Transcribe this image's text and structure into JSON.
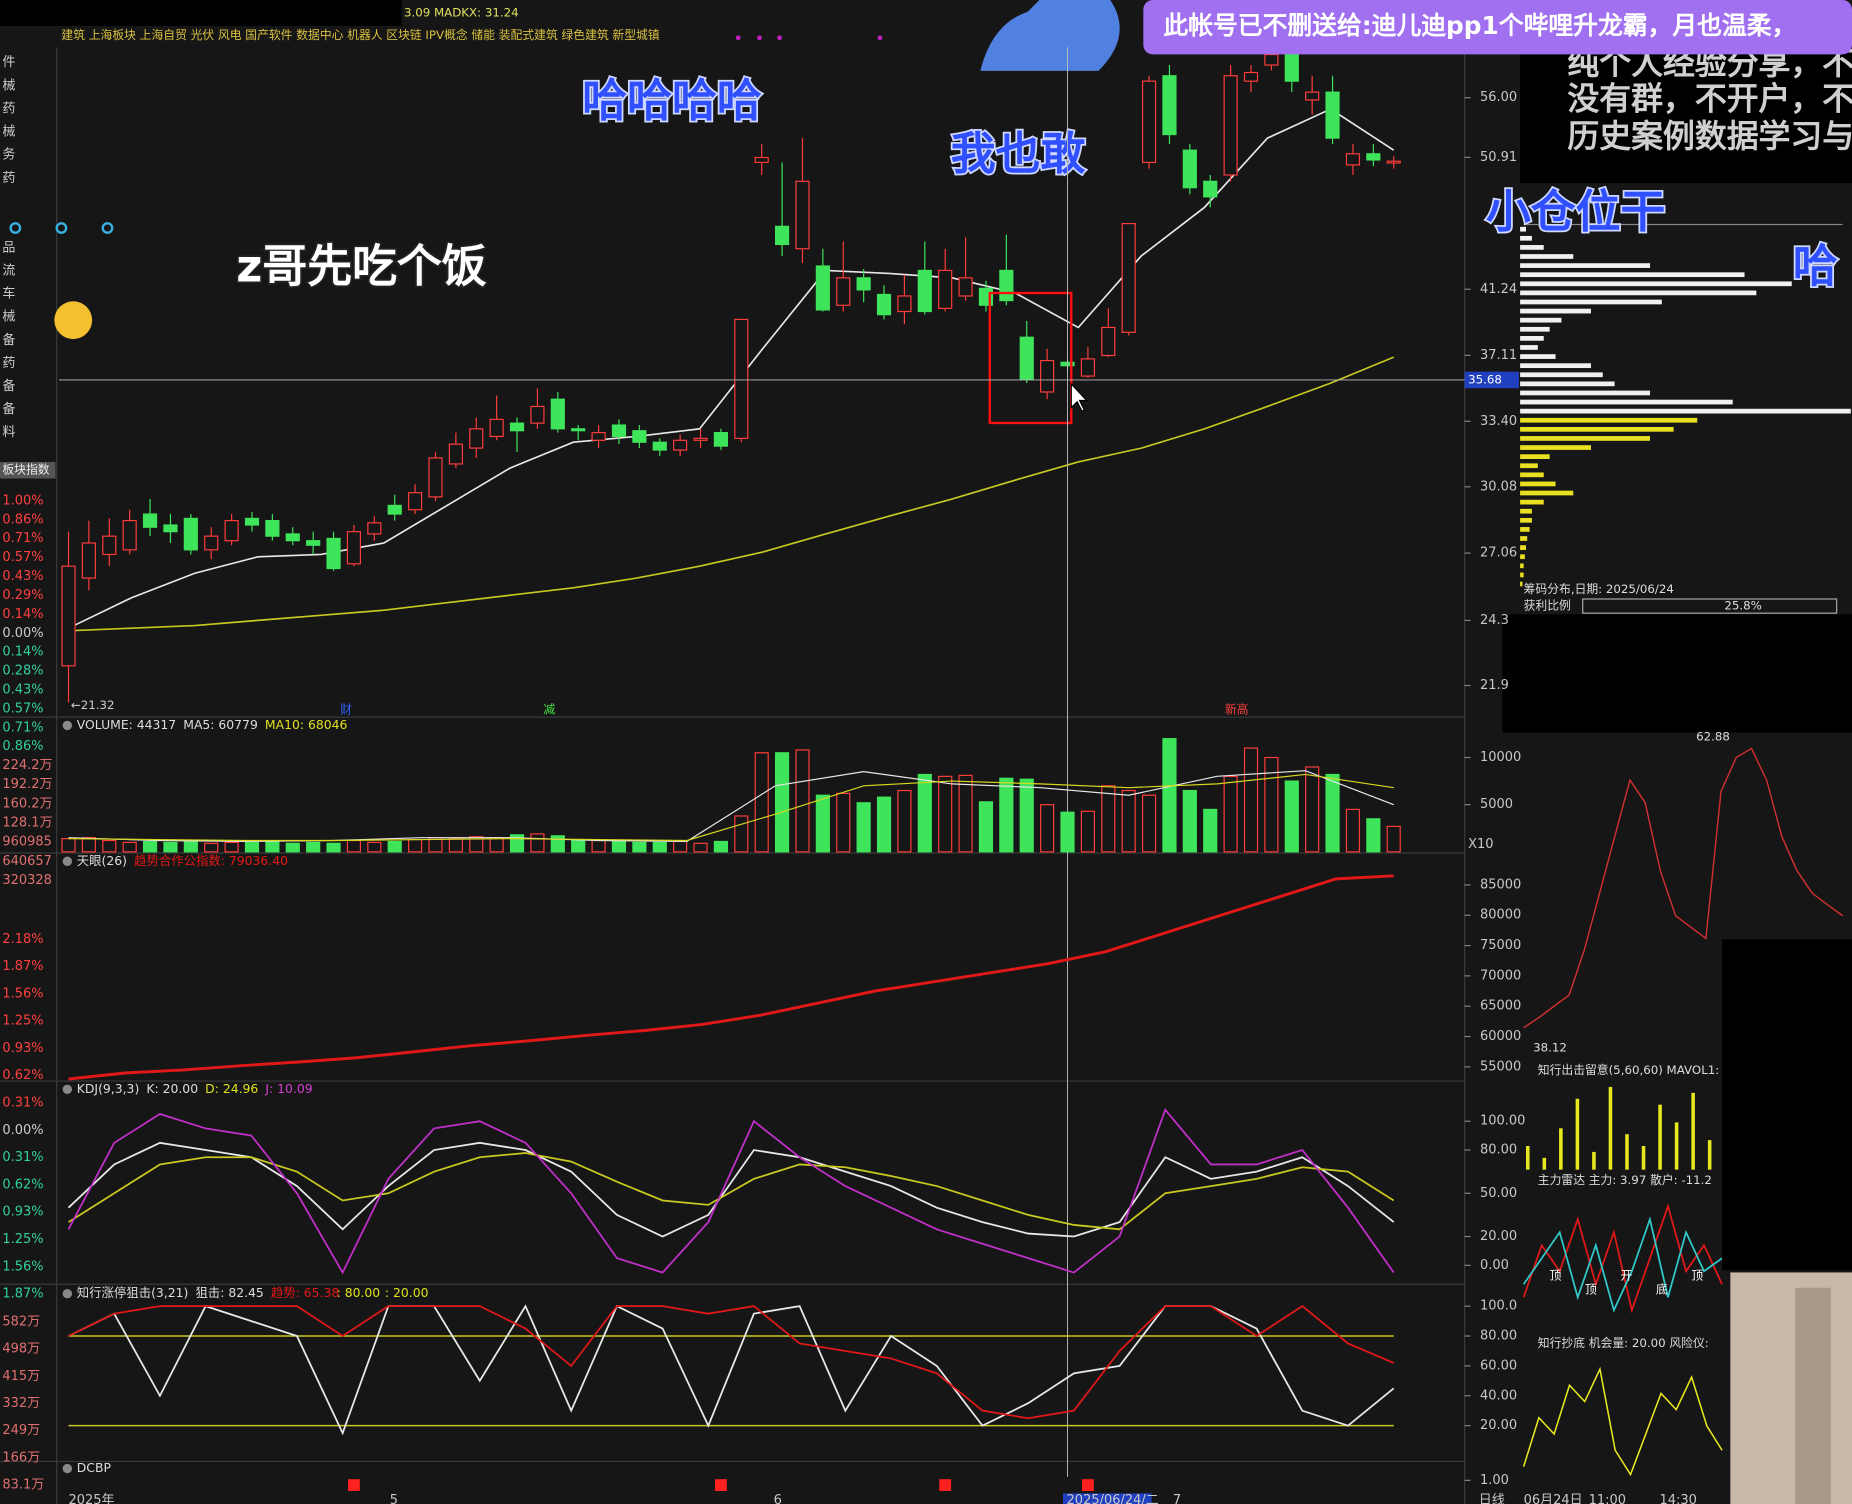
{
  "header": {
    "indicator": "3.09 MADKX: 31.24",
    "sectors": "建筑 上海板块 上海自贸 光伏 风电 国产软件 数据中心 机器人 区块链 IPV概念 储能 装配式建筑 绿色建筑 新型城镇"
  },
  "sidebar": {
    "top": [
      "件",
      "械",
      "药",
      "械",
      "务",
      "药"
    ],
    "mid": [
      "品",
      "流",
      "车",
      "械",
      "备",
      "药",
      "备",
      "备",
      "料"
    ],
    "index_label": "板块指数",
    "pct1": [
      "1.00%",
      "0.86%",
      "0.71%",
      "0.57%",
      "0.43%",
      "0.29%",
      "0.14%",
      "0.00%",
      "0.14%",
      "0.28%",
      "0.43%",
      "0.57%",
      "0.71%",
      "0.86%"
    ],
    "vol": [
      "224.2万",
      "192.2万",
      "160.2万",
      "128.1万",
      "960985",
      "640657",
      "320328"
    ],
    "pct2": [
      "2.18%",
      "1.87%",
      "1.56%",
      "1.25%",
      "0.93%",
      "0.62%",
      "0.31%",
      "0.00%",
      "0.31%",
      "0.62%",
      "0.93%",
      "1.25%",
      "1.56%",
      "1.87%"
    ],
    "amount": [
      "582万",
      "498万",
      "415万",
      "332万",
      "249万",
      "166万",
      "83.1万"
    ]
  },
  "overlays": {
    "haha": "哈哈哈哈",
    "dare": "我也敢",
    "eat": "z哥先吃个饭",
    "small": "小仓位干",
    "ha": "哈",
    "banner": "此帐号已不删送给:迪儿迪pp1个哔哩升龙霸，月也温柔，",
    "notes": [
      "纯个人经验分享，不",
      "没有群，不开户，不",
      "历史案例数据学习与"
    ]
  },
  "chart_data": [
    {
      "type": "candlestick",
      "log_scale": true,
      "ylim": [
        20.9,
        60.7
      ],
      "yticks": [
        {
          "value": 56,
          "label": "56.00"
        },
        50.91,
        41.24,
        37.11,
        {
          "value": 33.4,
          "label": "33.40"
        },
        30.08,
        27.06,
        24.3,
        21.9
      ],
      "current_price": 35.68,
      "low_label": "←21.32",
      "markers": [
        "财",
        "减",
        "新高"
      ],
      "up_color": "#ff3c3c",
      "down_color": "#3ee55a",
      "open": [
        22.6,
        26.0,
        27.0,
        27.2,
        28.8,
        28.3,
        28.6,
        27.2,
        27.6,
        28.6,
        28.5,
        27.9,
        27.6,
        27.7,
        26.6,
        27.9,
        29.2,
        29.0,
        29.6,
        31.2,
        32.0,
        32.6,
        33.3,
        33.3,
        34.6,
        33.0,
        32.4,
        33.2,
        32.9,
        32.3,
        31.9,
        32.4,
        32.8,
        32.5,
        50.5,
        45.6,
        44.0,
        42.8,
        40.2,
        42.0,
        40.9,
        39.8,
        42.5,
        40.0,
        40.8,
        41.3,
        42.5,
        38.2,
        35.0,
        36.7,
        35.9,
        37.1,
        38.5,
        50.5,
        58.0,
        51.5,
        49.0,
        49.5,
        57.5,
        59.0,
        60.0,
        55.8,
        56.5,
        50.3,
        51.2,
        50.5
      ],
      "high": [
        28.0,
        28.5,
        28.6,
        29.0,
        29.5,
        28.8,
        28.8,
        28.2,
        28.8,
        28.9,
        28.8,
        28.2,
        28.0,
        28.0,
        28.3,
        28.7,
        29.7,
        30.2,
        31.8,
        32.8,
        33.6,
        34.8,
        33.6,
        35.2,
        35.0,
        33.2,
        33.2,
        33.5,
        33.2,
        32.5,
        32.7,
        33.0,
        33.0,
        39.3,
        52.0,
        50.5,
        52.5,
        44.0,
        44.5,
        42.6,
        41.5,
        42.2,
        44.5,
        44.0,
        44.8,
        41.8,
        45.0,
        39.2,
        37.5,
        36.9,
        37.6,
        40.0,
        45.8,
        58.0,
        59.0,
        52.0,
        49.5,
        59.0,
        59.0,
        61.0,
        60.5,
        58.0,
        58.0,
        52.0,
        52.0,
        51.0
      ],
      "low": [
        21.32,
        25.5,
        26.5,
        27.0,
        27.8,
        27.5,
        27.0,
        26.8,
        27.4,
        28.0,
        27.6,
        27.4,
        27.0,
        26.3,
        26.5,
        27.6,
        28.5,
        28.8,
        29.4,
        31.0,
        31.5,
        32.4,
        31.8,
        33.0,
        32.8,
        32.4,
        32.0,
        32.2,
        32.0,
        31.6,
        31.6,
        32.0,
        31.9,
        32.3,
        49.5,
        43.5,
        43.0,
        39.8,
        39.8,
        40.4,
        39.3,
        39.0,
        39.6,
        39.8,
        40.5,
        39.8,
        40.2,
        35.5,
        34.6,
        36.2,
        35.8,
        37.0,
        38.3,
        50.0,
        52.0,
        48.0,
        47.0,
        49.0,
        56.5,
        58.5,
        56.5,
        54.5,
        52.0,
        49.5,
        50.2,
        50.0
      ],
      "close": [
        26.5,
        27.5,
        27.8,
        28.5,
        28.2,
        28.0,
        27.2,
        27.8,
        28.5,
        28.3,
        27.8,
        27.6,
        27.4,
        26.4,
        28.0,
        28.4,
        28.8,
        29.8,
        31.5,
        32.2,
        33.0,
        33.5,
        32.9,
        34.2,
        33.0,
        32.9,
        32.8,
        32.6,
        32.3,
        31.9,
        32.4,
        32.5,
        32.1,
        39.3,
        50.9,
        44.3,
        49.0,
        39.9,
        42.0,
        41.2,
        39.6,
        40.8,
        39.8,
        42.5,
        42.0,
        40.2,
        40.5,
        35.7,
        36.8,
        36.5,
        36.9,
        38.8,
        45.8,
        57.5,
        52.8,
        48.5,
        47.8,
        58.0,
        58.3,
        60.0,
        57.5,
        56.5,
        52.5,
        51.2,
        50.7,
        50.6
      ],
      "ma": [
        {
          "color": "#e8e8e8",
          "values": [
            24.0,
            25.2,
            26.2,
            26.9,
            27.0,
            27.5,
            29.2,
            31.0,
            32.3,
            32.6,
            33.0,
            37.5,
            42.5,
            42.3,
            42.0,
            41.0,
            38.8,
            43.5,
            47.0,
            52.5,
            55.0,
            51.5
          ]
        },
        {
          "color": "#c8c820",
          "values": [
            23.9,
            24.0,
            24.1,
            24.3,
            24.5,
            24.7,
            25.0,
            25.3,
            25.6,
            26.0,
            26.5,
            27.1,
            27.9,
            28.7,
            29.5,
            30.4,
            31.3,
            32.0,
            33.0,
            34.2,
            35.5,
            37.0
          ]
        }
      ]
    },
    {
      "type": "bar",
      "header": [
        "VOLUME: 44317",
        "MA5: 60779",
        "MA10: 68046"
      ],
      "unit": "X10",
      "ylim": [
        0,
        12400
      ],
      "yticks": [
        10000,
        5000
      ],
      "values": [
        1400,
        1500,
        1200,
        1000,
        1100,
        1000,
        1100,
        900,
        1000,
        1000,
        1100,
        900,
        1000,
        900,
        1200,
        1000,
        1100,
        1300,
        1500,
        1400,
        1600,
        1500,
        1800,
        1900,
        1700,
        1300,
        1200,
        1100,
        1000,
        1000,
        1100,
        900,
        1100,
        3800,
        10500,
        10500,
        10800,
        6000,
        6200,
        5200,
        5800,
        6500,
        8200,
        8000,
        8100,
        5300,
        7800,
        7700,
        5000,
        4200,
        4300,
        7000,
        6500,
        6000,
        12000,
        6500,
        4500,
        8000,
        11000,
        10000,
        7500,
        9000,
        8200,
        4500,
        3500,
        2700
      ],
      "series": [
        {
          "name": "MA5",
          "color": "#e8e8e8",
          "values": [
            1500,
            1200,
            1100,
            1200,
            1500,
            1500,
            1200,
            1100,
            7000,
            8500,
            7200,
            6800,
            6000,
            8000,
            8600,
            5000
          ]
        },
        {
          "name": "MA10",
          "color": "#d8d820",
          "values": [
            1400,
            1300,
            1200,
            1200,
            1300,
            1400,
            1300,
            1200,
            4000,
            7000,
            7500,
            7200,
            6800,
            7200,
            8200,
            6800
          ]
        }
      ]
    },
    {
      "type": "line",
      "header": [
        "天眼(26)",
        "趋势合作公指数: 79036.40"
      ],
      "ylim": [
        52660,
        87730
      ],
      "yticks": [
        85000,
        80000,
        75000,
        70000,
        65000,
        60000,
        55000
      ],
      "series": [
        {
          "color": "#e01818",
          "values": [
            53000,
            54000,
            54500,
            55200,
            55800,
            56500,
            57500,
            58500,
            59300,
            60200,
            61000,
            62000,
            63500,
            65500,
            67500,
            69000,
            70500,
            72000,
            74000,
            77000,
            80000,
            83000,
            86000,
            86500
          ]
        }
      ]
    },
    {
      "type": "line",
      "header": [
        "KDJ(9,3,3)",
        "K: 20.00",
        "D: 24.96",
        "J: 10.09"
      ],
      "ylim": [
        -11.5,
        115.6
      ],
      "yticks": [
        {
          "value": 100,
          "label": "100.00"
        },
        {
          "value": 80,
          "label": "80.00"
        },
        {
          "value": 50,
          "label": "50.00"
        },
        {
          "value": 20,
          "label": "20.00"
        },
        {
          "value": 0,
          "label": "0.00"
        }
      ],
      "series": [
        {
          "name": "K",
          "color": "#e8e8e8",
          "values": [
            40,
            70,
            85,
            80,
            75,
            55,
            25,
            55,
            80,
            85,
            80,
            65,
            35,
            20,
            35,
            80,
            75,
            65,
            55,
            40,
            30,
            22,
            20,
            30,
            75,
            60,
            65,
            75,
            55,
            30
          ]
        },
        {
          "name": "D",
          "color": "#c8c820",
          "values": [
            30,
            50,
            70,
            75,
            75,
            65,
            45,
            50,
            65,
            75,
            78,
            72,
            58,
            45,
            42,
            60,
            70,
            68,
            62,
            55,
            45,
            35,
            28,
            25,
            50,
            55,
            60,
            68,
            65,
            45
          ]
        },
        {
          "name": "J",
          "color": "#c030c8",
          "values": [
            25,
            85,
            105,
            95,
            90,
            50,
            -5,
            60,
            95,
            100,
            85,
            50,
            5,
            -5,
            30,
            100,
            75,
            55,
            40,
            25,
            15,
            5,
            -5,
            20,
            108,
            70,
            70,
            80,
            40,
            -5
          ]
        }
      ]
    },
    {
      "type": "line",
      "header": [
        "知行涨停狙击(3,21)",
        "狙击: 82.45",
        "趋势: 65.38"
      ],
      "ylim": [
        -2.4,
        110.7
      ],
      "levels": [
        {
          "value": 80,
          "label": ": 80.00"
        },
        {
          "value": 20,
          "label": ": 20.00"
        }
      ],
      "yticks": [
        {
          "value": 100,
          "label": "100.0"
        },
        {
          "value": 80,
          "label": "80.00"
        },
        {
          "value": 60,
          "label": "60.00"
        },
        {
          "value": 40,
          "label": "40.00"
        },
        {
          "value": 20,
          "label": "20.00"
        }
      ],
      "series": [
        {
          "color": "#e8e8e8",
          "values": [
            80,
            95,
            40,
            100,
            90,
            80,
            15,
            100,
            100,
            50,
            100,
            30,
            100,
            85,
            20,
            95,
            100,
            30,
            80,
            60,
            20,
            35,
            55,
            60,
            100,
            100,
            85,
            30,
            20,
            45
          ]
        },
        {
          "color": "#e01818",
          "values": [
            80,
            95,
            100,
            100,
            100,
            100,
            80,
            100,
            100,
            100,
            85,
            60,
            100,
            100,
            95,
            100,
            75,
            70,
            65,
            55,
            30,
            25,
            30,
            70,
            100,
            100,
            80,
            100,
            75,
            62
          ]
        }
      ]
    },
    {
      "type": "signal",
      "header": "DCBP",
      "yticks": [
        {
          "value": 1,
          "label": "1.00"
        }
      ],
      "x": [
        14,
        32,
        43,
        50
      ],
      "color": "#ff2020"
    }
  ],
  "bottom_axis": {
    "labels": [
      "2025年",
      "5",
      "6",
      "2025/06/24/二",
      "7"
    ],
    "right": [
      "日线",
      "06月24日",
      "11:00",
      "14:30"
    ]
  },
  "side": {
    "profile_title": "筹码分布,日期: 2025/06/24",
    "profit_label": "获利比例",
    "profit": "25.8%",
    "profile": [
      {
        "color": "#f0f0f0",
        "values": [
          5,
          10,
          20,
          45,
          110,
          190,
          230,
          200,
          120,
          60,
          35,
          25,
          20,
          15,
          30,
          60,
          70,
          80,
          110,
          180,
          280
        ]
      },
      {
        "color": "#e8e020",
        "values": [
          150,
          130,
          110,
          60,
          25,
          15,
          20,
          30,
          45,
          20,
          10,
          10,
          8,
          6,
          5,
          4,
          3,
          3,
          2
        ]
      }
    ],
    "intraday": {
      "high_label": "62.88",
      "low_label": "38.12",
      "ylim": [
        36,
        64
      ],
      "values": [
        38.1,
        39,
        40,
        41,
        45,
        50,
        55,
        60,
        58,
        52,
        48,
        47,
        46,
        59,
        62,
        62.8,
        60,
        55,
        52,
        50,
        49,
        48
      ]
    },
    "p1": {
      "header": "知行出击留意(5,60,60) MAVOL1:",
      "values": [
        20,
        10,
        35,
        60,
        15,
        70,
        30,
        20,
        55,
        40,
        65,
        25
      ]
    },
    "p2": {
      "header": "主力雷达 主力: 3.97 散户: -11.2",
      "tags": [
        "顶",
        "顶",
        "开",
        "底",
        "顶"
      ],
      "series": [
        {
          "color": "#e01818",
          "values": [
            20,
            60,
            40,
            80,
            30,
            70,
            10,
            50,
            90,
            40,
            60,
            30
          ]
        },
        {
          "color": "#30c8c8",
          "values": [
            30,
            50,
            70,
            20,
            60,
            10,
            40,
            80,
            20,
            70,
            40,
            50
          ]
        }
      ]
    },
    "p3": {
      "header": "知行抄底 机会量: 20.00 风险仪:",
      "values": [
        10,
        40,
        30,
        60,
        50,
        70,
        20,
        5,
        30,
        55,
        45,
        65,
        35,
        20
      ]
    }
  }
}
